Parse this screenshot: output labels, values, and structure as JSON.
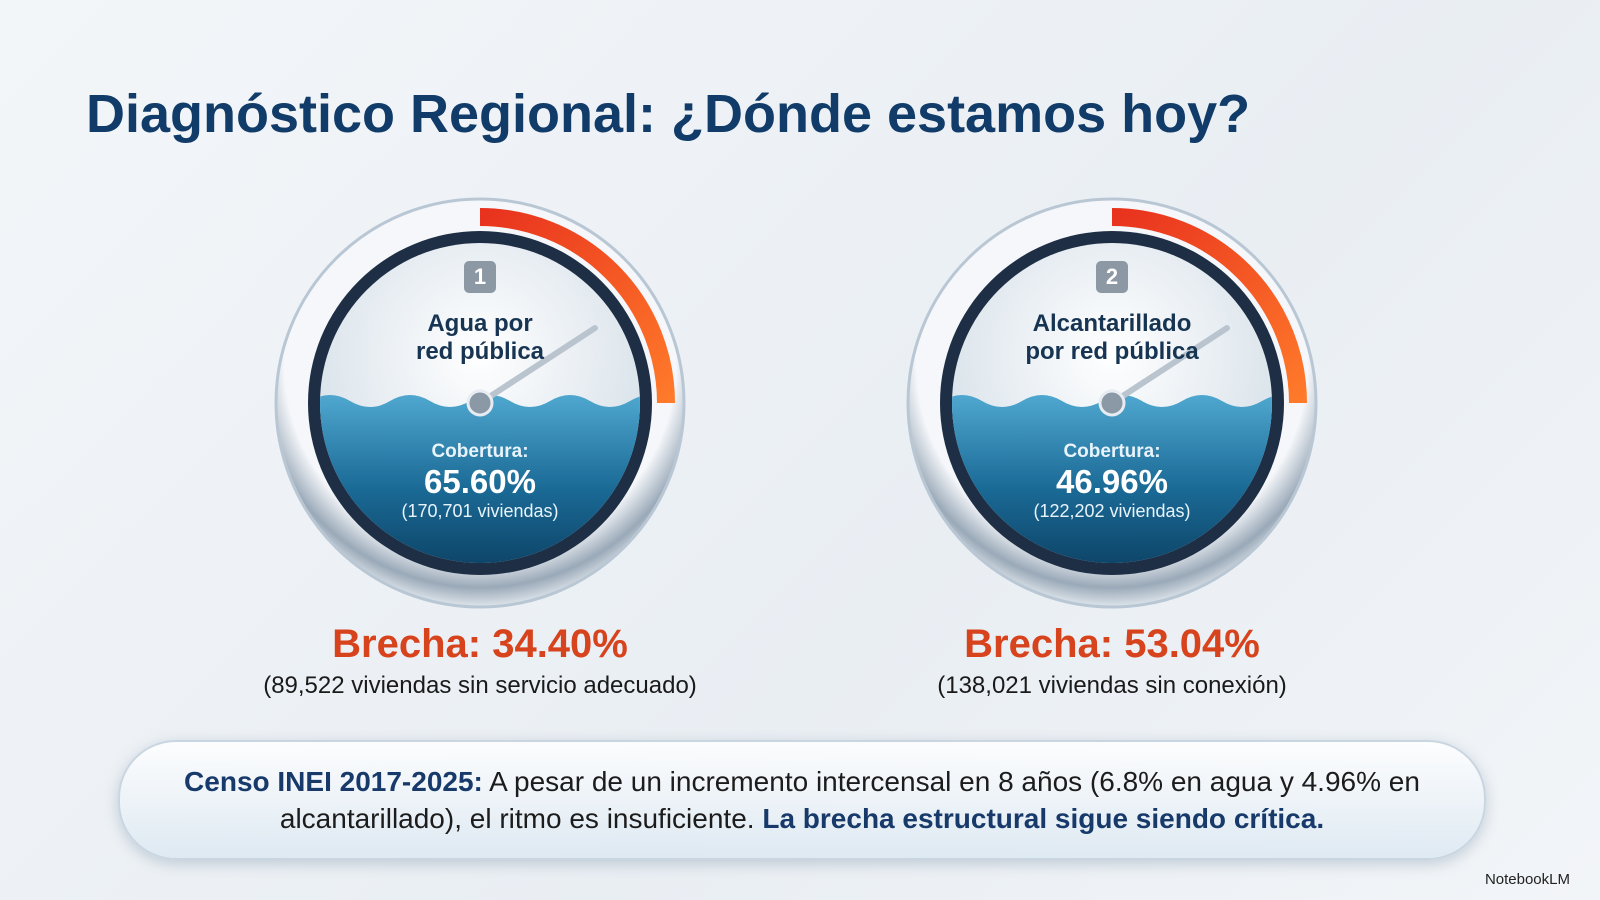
{
  "header": {
    "title": "Diagnóstico Regional: ¿Dónde estamos hoy?"
  },
  "gauges": [
    {
      "badge": "1",
      "label": [
        "Agua por",
        "red pública"
      ],
      "coverage_label": "Cobertura:",
      "coverage": "65.60%",
      "households": "(170,701 viviendas)",
      "gap": "Brecha: 34.40%",
      "gap_note": "(89,522 viviendas sin servicio adecuado)"
    },
    {
      "badge": "2",
      "label": [
        "Alcantarillado",
        "por red pública"
      ],
      "coverage_label": "Cobertura:",
      "coverage": "46.96%",
      "households": "(122,202 viviendas)",
      "gap": "Brecha: 53.04%",
      "gap_note": "(138,021 viviendas sin conexión)"
    }
  ],
  "note": {
    "lead": "Censo INEI 2017-2025:",
    "body": "A pesar de un incremento intercensal en 8 años (6.8% en agua y 4.96% en alcantarillado), el ritmo es insuficiente.",
    "emphasis": "La brecha estructural sigue siendo crítica."
  },
  "brand": "NotebookLM"
}
